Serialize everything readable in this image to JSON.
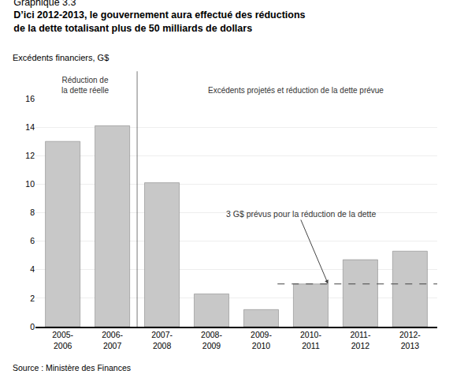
{
  "chart_data": {
    "type": "bar",
    "supertitle": "Graphique 3.3",
    "title": "D’ici 2012-2013, le gouvernement aura effectué des réductions\nde la dette totalisant plus de 50 milliards de dollars",
    "subtitle": "Excédents financiers, G$",
    "categories": [
      "2005-\n2006",
      "2006-\n2007",
      "2007-\n2008",
      "2008-\n2009",
      "2009-\n2010",
      "2010-\n2011",
      "2011-\n2012",
      "2012-\n2013"
    ],
    "values": [
      13.0,
      14.1,
      10.1,
      2.3,
      1.2,
      3.0,
      4.7,
      5.3
    ],
    "color": "#c8c8c8",
    "ylim": [
      0,
      16
    ],
    "yticks": [
      0,
      2,
      4,
      6,
      8,
      10,
      12,
      14,
      16
    ],
    "grid": true,
    "annotations": [
      "Réduction de\nla dette réelle",
      "Excédents projetés et réduction de la dette prévue"
    ],
    "reference_line": {
      "value": 3.0,
      "label": "3 G$ prévus pour la réduction de la dette"
    },
    "source": "Source : Ministère des Finances"
  }
}
